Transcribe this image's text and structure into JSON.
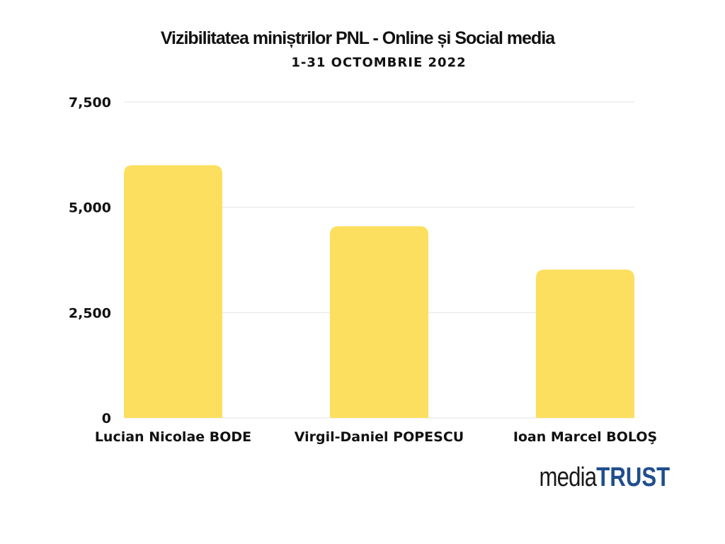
{
  "header": {
    "title": "Vizibilitatea miniștrilor PNL - Online și Social media",
    "subtitle": "1-31 OCTOMBRIE 2022"
  },
  "chart_data": {
    "type": "bar",
    "categories": [
      "Lucian Nicolae BODE",
      "Virgil-Daniel POPESCU",
      "Ioan Marcel BOLOŞ"
    ],
    "values": [
      6000,
      4550,
      3520
    ],
    "ylim": [
      0,
      7500
    ],
    "yticks": [
      0,
      2500,
      5000,
      7500
    ],
    "ytick_labels": [
      "0",
      "2,500",
      "5,000",
      "7,500"
    ],
    "grid": true,
    "bar_color": "#fddf5f",
    "grid_color": "#e6e6e6"
  },
  "logo": {
    "part1": "media",
    "part2": "TRUST",
    "part2_color": "#1f4e8c"
  }
}
